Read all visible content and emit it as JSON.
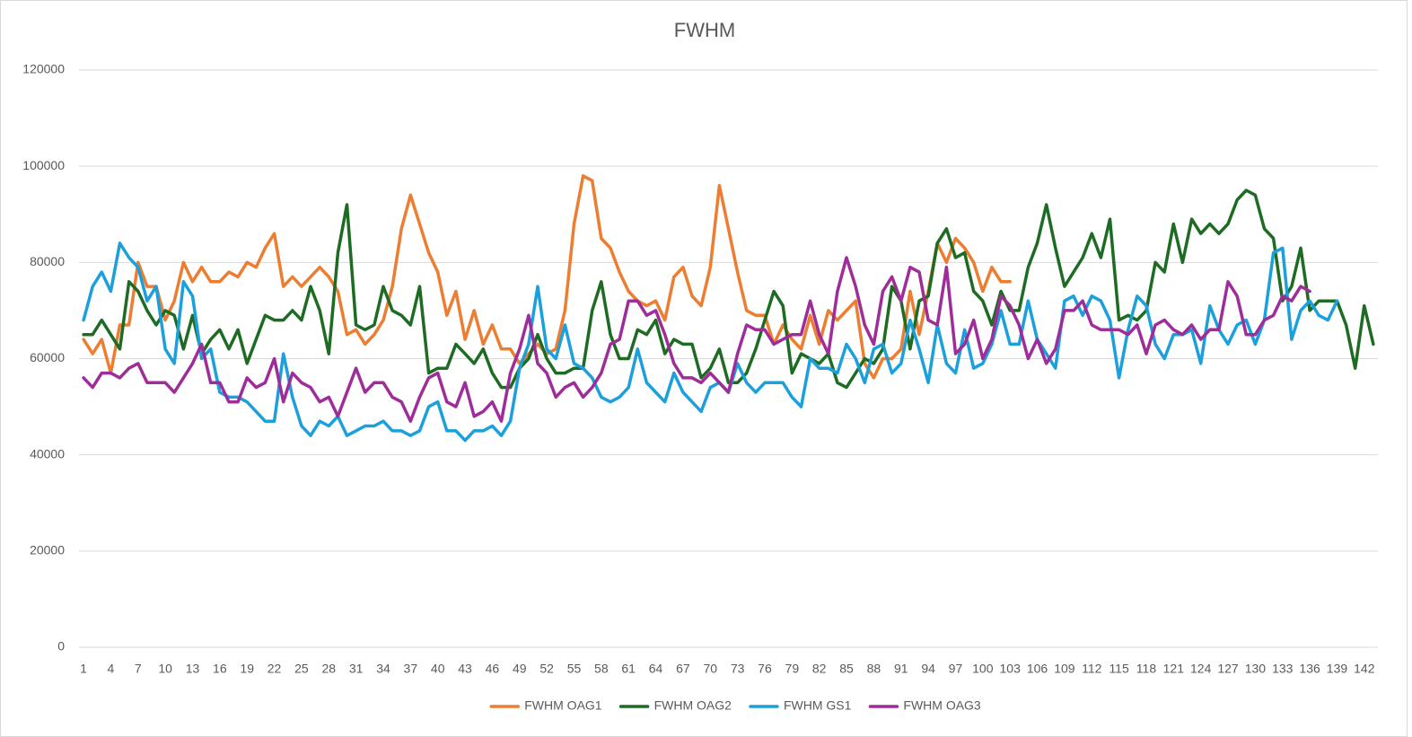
{
  "chart_data": {
    "type": "line",
    "title": "FWHM",
    "categories": [
      1,
      null,
      null,
      4,
      null,
      null,
      7,
      null,
      null,
      10,
      null,
      null,
      13,
      null,
      null,
      16,
      null,
      null,
      19,
      null,
      null,
      22,
      null,
      null,
      25,
      null,
      null,
      28,
      null,
      null,
      31,
      null,
      null,
      34,
      null,
      null,
      37,
      null,
      null,
      40,
      null,
      null,
      43,
      null,
      null,
      46,
      null,
      null,
      49,
      null,
      null,
      52,
      null,
      null,
      55,
      null,
      null,
      58,
      null,
      null,
      61,
      null,
      null,
      64,
      null,
      null,
      67,
      null,
      null,
      70,
      null,
      null,
      73,
      null,
      null,
      76,
      null,
      null,
      79,
      null,
      null,
      82,
      null,
      null,
      85,
      null,
      null,
      88,
      null,
      null,
      91,
      null,
      null,
      94,
      null,
      null,
      97,
      null,
      null,
      100,
      null,
      null,
      103,
      null,
      null,
      106,
      null,
      null,
      109,
      null,
      null,
      112,
      null,
      null,
      115,
      null,
      null,
      118,
      null,
      null,
      121,
      null,
      null,
      124,
      null,
      null,
      127,
      null,
      null,
      130,
      null,
      null,
      133,
      null,
      null,
      136,
      null,
      null,
      139,
      null,
      null,
      142,
      null
    ],
    "series": [
      {
        "name": "FWHM OAG1",
        "color": "#ed7d31",
        "values": [
          64000,
          61000,
          64000,
          57000,
          67000,
          67000,
          80000,
          75000,
          75000,
          68000,
          72000,
          80000,
          76000,
          79000,
          76000,
          76000,
          78000,
          77000,
          80000,
          79000,
          83000,
          86000,
          75000,
          77000,
          75000,
          77000,
          79000,
          77000,
          74000,
          65000,
          66000,
          63000,
          65000,
          68000,
          75000,
          87000,
          94000,
          88000,
          82000,
          78000,
          69000,
          74000,
          64000,
          70000,
          63000,
          67000,
          62000,
          62000,
          59000,
          61000,
          63000,
          61000,
          62000,
          70000,
          88000,
          98000,
          97000,
          85000,
          83000,
          78000,
          74000,
          72000,
          71000,
          72000,
          68000,
          77000,
          79000,
          73000,
          71000,
          79000,
          96000,
          87000,
          78000,
          70000,
          69000,
          69000,
          63000,
          67000,
          64000,
          62000,
          69000,
          63000,
          70000,
          68000,
          70000,
          72000,
          59000,
          56000,
          60000,
          60000,
          62000,
          74000,
          65000,
          74000,
          84000,
          80000,
          85000,
          83000,
          80000,
          74000,
          79000,
          76000,
          76000,
          null,
          null,
          null,
          null,
          null,
          null,
          null,
          null,
          null,
          null,
          null,
          null,
          null,
          null,
          null,
          null,
          null,
          null,
          null,
          null,
          null,
          null,
          null,
          null,
          null,
          null,
          null,
          null,
          null,
          null,
          null,
          null,
          null,
          null,
          null,
          null,
          null,
          null,
          null,
          null
        ]
      },
      {
        "name": "FWHM OAG2",
        "color": "#1e6b24",
        "values": [
          65000,
          65000,
          68000,
          65000,
          62000,
          76000,
          74000,
          70000,
          67000,
          70000,
          69000,
          62000,
          69000,
          61000,
          64000,
          66000,
          62000,
          66000,
          59000,
          64000,
          69000,
          68000,
          68000,
          70000,
          68000,
          75000,
          70000,
          61000,
          82000,
          92000,
          67000,
          66000,
          67000,
          75000,
          70000,
          69000,
          67000,
          75000,
          57000,
          58000,
          58000,
          63000,
          61000,
          59000,
          62000,
          57000,
          54000,
          54000,
          58000,
          60000,
          65000,
          60000,
          57000,
          57000,
          58000,
          58000,
          70000,
          76000,
          65000,
          60000,
          60000,
          66000,
          65000,
          68000,
          61000,
          64000,
          63000,
          63000,
          56000,
          58000,
          62000,
          55000,
          55000,
          57000,
          62000,
          68000,
          74000,
          71000,
          57000,
          61000,
          60000,
          59000,
          61000,
          55000,
          54000,
          57000,
          60000,
          59000,
          62000,
          75000,
          72000,
          62000,
          72000,
          73000,
          84000,
          87000,
          81000,
          82000,
          74000,
          72000,
          67000,
          74000,
          70000,
          70000,
          79000,
          84000,
          92000,
          83000,
          75000,
          78000,
          81000,
          86000,
          81000,
          89000,
          68000,
          69000,
          68000,
          70000,
          80000,
          78000,
          88000,
          80000,
          89000,
          86000,
          88000,
          86000,
          88000,
          93000,
          95000,
          94000,
          87000,
          85000,
          72000,
          75000,
          83000,
          70000,
          72000,
          72000,
          72000,
          67000,
          58000,
          71000,
          63000
        ]
      },
      {
        "name": "FWHM GS1",
        "color": "#1ca0dc",
        "values": [
          68000,
          75000,
          78000,
          74000,
          84000,
          81000,
          79000,
          72000,
          75000,
          62000,
          59000,
          76000,
          73000,
          60000,
          62000,
          53000,
          52000,
          52000,
          51000,
          49000,
          47000,
          47000,
          61000,
          52000,
          46000,
          44000,
          47000,
          46000,
          48000,
          44000,
          45000,
          46000,
          46000,
          47000,
          45000,
          45000,
          44000,
          45000,
          50000,
          51000,
          45000,
          45000,
          43000,
          45000,
          45000,
          46000,
          44000,
          47000,
          58000,
          63000,
          75000,
          62000,
          60000,
          67000,
          59000,
          58000,
          56000,
          52000,
          51000,
          52000,
          54000,
          62000,
          55000,
          53000,
          51000,
          57000,
          53000,
          51000,
          49000,
          54000,
          55000,
          53000,
          59000,
          55000,
          53000,
          55000,
          55000,
          55000,
          52000,
          50000,
          60000,
          58000,
          58000,
          57000,
          63000,
          60000,
          55000,
          62000,
          63000,
          57000,
          59000,
          68000,
          62000,
          55000,
          67000,
          59000,
          57000,
          66000,
          58000,
          59000,
          63000,
          70000,
          63000,
          63000,
          72000,
          64000,
          61000,
          58000,
          72000,
          73000,
          69000,
          73000,
          72000,
          68000,
          56000,
          66000,
          73000,
          71000,
          63000,
          60000,
          65000,
          65000,
          66000,
          59000,
          71000,
          66000,
          63000,
          67000,
          68000,
          63000,
          68000,
          82000,
          83000,
          64000,
          70000,
          72000,
          69000,
          68000,
          72000,
          null,
          null,
          null,
          null
        ]
      },
      {
        "name": "FWHM OAG3",
        "color": "#9e2d9a",
        "values": [
          56000,
          54000,
          57000,
          57000,
          56000,
          58000,
          59000,
          55000,
          55000,
          55000,
          53000,
          56000,
          59000,
          63000,
          55000,
          55000,
          51000,
          51000,
          56000,
          54000,
          55000,
          60000,
          51000,
          57000,
          55000,
          54000,
          51000,
          52000,
          48000,
          53000,
          58000,
          53000,
          55000,
          55000,
          52000,
          51000,
          47000,
          52000,
          56000,
          57000,
          51000,
          50000,
          55000,
          48000,
          49000,
          51000,
          47000,
          57000,
          62000,
          69000,
          59000,
          57000,
          52000,
          54000,
          55000,
          52000,
          54000,
          57000,
          63000,
          64000,
          72000,
          72000,
          69000,
          70000,
          65000,
          59000,
          56000,
          56000,
          55000,
          57000,
          55000,
          53000,
          61000,
          67000,
          66000,
          66000,
          63000,
          64000,
          65000,
          65000,
          72000,
          65000,
          61000,
          74000,
          81000,
          75000,
          67000,
          63000,
          74000,
          77000,
          72000,
          79000,
          78000,
          68000,
          67000,
          79000,
          61000,
          63000,
          68000,
          60000,
          64000,
          73000,
          71000,
          67000,
          60000,
          64000,
          59000,
          62000,
          70000,
          70000,
          72000,
          67000,
          66000,
          66000,
          66000,
          65000,
          67000,
          61000,
          67000,
          68000,
          66000,
          65000,
          67000,
          64000,
          66000,
          66000,
          76000,
          73000,
          65000,
          65000,
          68000,
          69000,
          73000,
          72000,
          75000,
          74000,
          null,
          null,
          null,
          null,
          null,
          null,
          null
        ]
      }
    ],
    "ylim": [
      0,
      120000
    ],
    "yticks": [
      0,
      20000,
      40000,
      60000,
      80000,
      100000,
      120000
    ],
    "grid": true,
    "legend": "bottom"
  }
}
